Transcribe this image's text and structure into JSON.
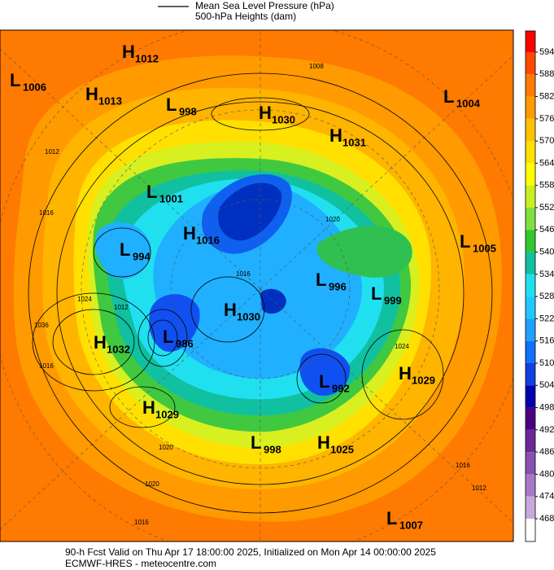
{
  "header": {
    "legend_lines": [
      "Mean Sea Level Pressure (hPa)",
      "500-hPa Heights (dam)"
    ]
  },
  "pressure_centers": [
    {
      "letter": "H",
      "value": "1012"
    },
    {
      "letter": "L",
      "value": "1006"
    },
    {
      "letter": "H",
      "value": "1013"
    },
    {
      "letter": "L",
      "value": "998"
    },
    {
      "letter": "H",
      "value": "1030"
    },
    {
      "letter": "H",
      "value": "1031"
    },
    {
      "letter": "L",
      "value": "1004"
    },
    {
      "letter": "L",
      "value": "1001"
    },
    {
      "letter": "H",
      "value": "1016"
    },
    {
      "letter": "L",
      "value": "994"
    },
    {
      "letter": "L",
      "value": "1005"
    },
    {
      "letter": "L",
      "value": "996"
    },
    {
      "letter": "L",
      "value": "999"
    },
    {
      "letter": "H",
      "value": "1030"
    },
    {
      "letter": "H",
      "value": "1032"
    },
    {
      "letter": "L",
      "value": "986"
    },
    {
      "letter": "L",
      "value": "992"
    },
    {
      "letter": "H",
      "value": "1029"
    },
    {
      "letter": "H",
      "value": "1029"
    },
    {
      "letter": "L",
      "value": "998"
    },
    {
      "letter": "H",
      "value": "1025"
    },
    {
      "letter": "L",
      "value": "1007"
    }
  ],
  "contour_labels": [
    "1008",
    "1012",
    "1016",
    "1020",
    "1016",
    "1024",
    "1012",
    "1036",
    "1016",
    "1024",
    "1020",
    "1016",
    "1012",
    "1020",
    "1016"
  ],
  "colorbar": {
    "ticks": [
      594,
      588,
      582,
      576,
      570,
      564,
      558,
      552,
      546,
      540,
      534,
      528,
      522,
      516,
      510,
      504,
      498,
      492,
      486,
      480,
      474,
      468
    ],
    "colors": [
      "#ff0000",
      "#ff4a00",
      "#ff7a00",
      "#ff9a00",
      "#ffc000",
      "#ffe000",
      "#ffff00",
      "#c8f020",
      "#80e040",
      "#30c830",
      "#10c0a0",
      "#20e0f0",
      "#20c8ff",
      "#20a0ff",
      "#1070ff",
      "#1040e0",
      "#0000b0",
      "#4a0080",
      "#6a2898",
      "#8850b0",
      "#a878c8",
      "#c8a8dc",
      "#ffffff"
    ]
  },
  "footer": [
    "90-h Fcst Valid on Thu Apr 17 18:00:00 2025, Initialized on Mon Apr 14 00:00:00 2025",
    "ECMWF-HRES - meteocentre.com"
  ]
}
